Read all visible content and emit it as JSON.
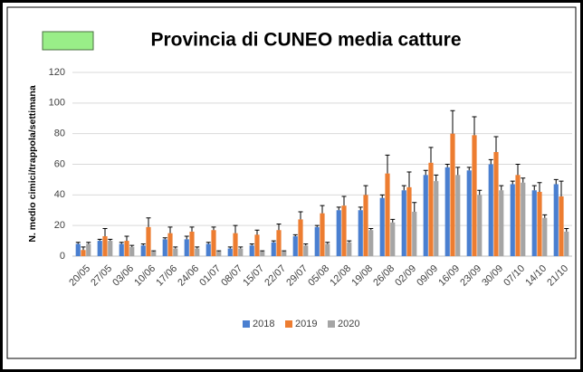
{
  "chart_data": {
    "type": "bar",
    "title": "Provincia di CUNEO media catture",
    "y_label": "N. medio cimici/trappola/settimana",
    "categories": [
      "20/05",
      "27/05",
      "03/06",
      "10/06",
      "17/06",
      "24/06",
      "01/07",
      "08/07",
      "15/07",
      "22/07",
      "29/07",
      "05/08",
      "12/08",
      "19/08",
      "26/08",
      "02/09",
      "09/09",
      "16/09",
      "23/09",
      "30/09",
      "07/10",
      "14/10",
      "21/10"
    ],
    "series": [
      {
        "name": "2018",
        "color": "#4a7fd0",
        "values": [
          8,
          10,
          8,
          7,
          11,
          11,
          8,
          5,
          7,
          9,
          13,
          19,
          30,
          30,
          38,
          43,
          53,
          58,
          56,
          60,
          47,
          43,
          47
        ],
        "errors": [
          1,
          1,
          1,
          1,
          1,
          2,
          1,
          1,
          1,
          1,
          1,
          1,
          2,
          2,
          2,
          3,
          3,
          2,
          2,
          3,
          2,
          3,
          3
        ]
      },
      {
        "name": "2019",
        "color": "#ed7d31",
        "values": [
          4,
          13,
          10,
          19,
          15,
          16,
          17,
          15,
          14,
          17,
          24,
          28,
          33,
          40,
          54,
          45,
          61,
          80,
          79,
          68,
          53,
          42,
          39
        ],
        "errors": [
          2,
          5,
          3,
          6,
          4,
          3,
          2,
          5,
          3,
          4,
          5,
          5,
          6,
          6,
          12,
          10,
          10,
          15,
          12,
          10,
          7,
          6,
          10
        ]
      },
      {
        "name": "2020",
        "color": "#a5a5a5",
        "values": [
          8,
          10,
          6,
          3,
          5,
          5,
          3,
          5,
          3,
          3,
          7,
          8,
          9,
          17,
          22,
          29,
          49,
          53,
          40,
          43,
          48,
          25,
          16
        ],
        "errors": [
          1,
          1,
          1,
          0.5,
          1,
          1,
          0.5,
          1,
          0.5,
          0.5,
          1,
          1,
          1,
          1,
          2,
          6,
          4,
          5,
          3,
          3,
          3,
          2,
          2
        ]
      }
    ],
    "ylim": [
      0,
      120
    ],
    "yticks": [
      0,
      20,
      40,
      60,
      80,
      100,
      120
    ],
    "grid": true
  }
}
